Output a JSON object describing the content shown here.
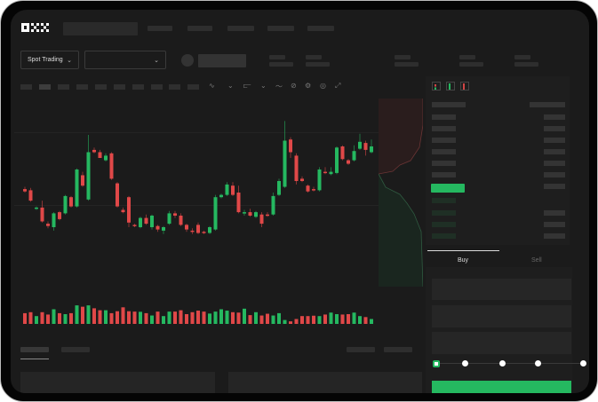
{
  "header": {
    "logo": "OKX"
  },
  "controls": {
    "market_type": "Spot Trading",
    "pair_select": ""
  },
  "orderbook": {
    "view_icons": [
      "orderbook-both-icon",
      "orderbook-bids-icon",
      "orderbook-asks-icon"
    ]
  },
  "trade_panel": {
    "tabs": [
      "Buy",
      "Sell"
    ],
    "active_tab": "Buy",
    "slider_percent": 0,
    "slider_stops": [
      0,
      25,
      50,
      75,
      100
    ]
  },
  "colors": {
    "up": "#25b860",
    "down": "#e04848",
    "background": "#1b1b1b",
    "buy_button": "#25b860"
  },
  "chart_data": {
    "type": "candlestick",
    "title": "",
    "xlabel": "",
    "ylabel": "",
    "grid": true,
    "candles": [
      [
        43,
        45,
        40,
        41
      ],
      [
        42,
        44,
        32,
        33
      ],
      [
        26,
        28,
        25,
        27
      ],
      [
        27,
        33,
        14,
        15
      ],
      [
        13,
        15,
        9,
        11
      ],
      [
        10,
        23,
        7,
        22
      ],
      [
        23,
        24,
        16,
        17
      ],
      [
        22,
        38,
        21,
        37
      ],
      [
        36,
        37,
        27,
        28
      ],
      [
        28,
        61,
        27,
        60
      ],
      [
        55,
        58,
        45,
        46
      ],
      [
        34,
        90,
        33,
        75
      ],
      [
        77,
        79,
        74,
        75
      ],
      [
        75,
        77,
        70,
        70
      ],
      [
        68,
        74,
        67,
        72
      ],
      [
        74,
        75,
        51,
        52
      ],
      [
        48,
        49,
        27,
        28
      ],
      [
        25,
        27,
        22,
        23
      ],
      [
        36,
        37,
        10,
        14
      ],
      [
        12,
        13,
        10,
        11
      ],
      [
        10,
        19,
        9,
        18
      ],
      [
        18,
        21,
        12,
        13
      ],
      [
        10,
        21,
        8,
        20
      ],
      [
        11,
        12,
        6,
        8
      ],
      [
        7,
        11,
        4,
        10
      ],
      [
        13,
        24,
        12,
        22
      ],
      [
        22,
        24,
        18,
        20
      ],
      [
        20,
        22,
        11,
        12
      ],
      [
        12,
        13,
        6,
        8
      ],
      [
        7,
        9,
        4,
        6
      ],
      [
        12,
        14,
        4,
        5
      ],
      [
        6,
        7,
        4,
        5
      ],
      [
        5,
        11,
        4,
        10
      ],
      [
        8,
        38,
        7,
        36
      ],
      [
        36,
        39,
        35,
        38
      ],
      [
        38,
        49,
        37,
        47
      ],
      [
        46,
        49,
        37,
        38
      ],
      [
        40,
        46,
        22,
        23
      ],
      [
        22,
        25,
        20,
        23
      ],
      [
        23,
        26,
        19,
        20
      ],
      [
        19,
        24,
        18,
        23
      ],
      [
        21,
        23,
        10,
        13
      ],
      [
        21,
        23,
        19,
        20
      ],
      [
        21,
        40,
        20,
        37
      ],
      [
        38,
        52,
        37,
        50
      ],
      [
        45,
        102,
        44,
        85
      ],
      [
        86,
        88,
        70,
        75
      ],
      [
        72,
        74,
        47,
        50
      ],
      [
        52,
        54,
        49,
        50
      ],
      [
        46,
        47,
        40,
        41
      ],
      [
        43,
        45,
        41,
        42
      ],
      [
        42,
        62,
        41,
        60
      ],
      [
        58,
        62,
        56,
        57
      ],
      [
        56,
        62,
        55,
        58
      ],
      [
        57,
        80,
        56,
        79
      ],
      [
        80,
        81,
        68,
        69
      ],
      [
        68,
        69,
        64,
        65
      ],
      [
        68,
        81,
        67,
        76
      ],
      [
        78,
        91,
        77,
        84
      ],
      [
        83,
        85,
        72,
        77
      ],
      [
        75,
        86,
        74,
        80
      ]
    ],
    "volume": [
      55,
      60,
      40,
      60,
      48,
      75,
      55,
      50,
      55,
      95,
      88,
      95,
      80,
      70,
      70,
      55,
      65,
      85,
      65,
      63,
      62,
      55,
      43,
      63,
      40,
      63,
      63,
      70,
      50,
      60,
      68,
      63,
      53,
      63,
      75,
      68,
      60,
      58,
      78,
      45,
      60,
      43,
      52,
      43,
      55,
      20,
      13,
      25,
      40,
      40,
      42,
      40,
      48,
      58,
      50,
      48,
      50,
      58,
      40,
      35,
      25
    ]
  }
}
